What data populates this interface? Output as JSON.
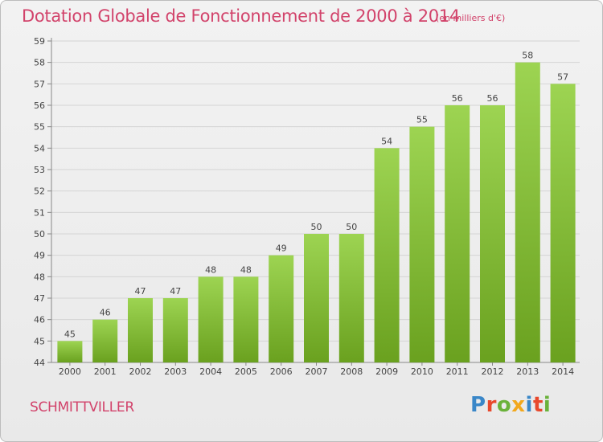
{
  "header": {
    "title": "Dotation Globale de Fonctionnement de 2000 à 2014",
    "unit": "(en milliers d'€)"
  },
  "footer": {
    "place": "SCHMITTVILLER",
    "brand": "Proxiti"
  },
  "colors": {
    "accent": "#d2436b",
    "bar_top": "#9dd452",
    "bar_bottom": "#6aa11f",
    "logo": [
      "#3a87c8",
      "#e8482c",
      "#6ab23a",
      "#f2a81d",
      "#3a87c8",
      "#e8482c",
      "#6ab23a"
    ]
  },
  "chart_data": {
    "type": "bar",
    "title": "Dotation Globale de Fonctionnement de 2000 à 2014",
    "subtitle": "(en milliers d'€)",
    "xlabel": "",
    "ylabel": "",
    "categories": [
      "2000",
      "2001",
      "2002",
      "2003",
      "2004",
      "2005",
      "2006",
      "2007",
      "2008",
      "2009",
      "2010",
      "2011",
      "2012",
      "2013",
      "2014"
    ],
    "values": [
      45,
      46,
      47,
      47,
      48,
      48,
      49,
      50,
      50,
      54,
      55,
      56,
      56,
      58,
      57
    ],
    "ylim": [
      44,
      59
    ],
    "yticks": [
      44,
      45,
      46,
      47,
      48,
      49,
      50,
      51,
      52,
      53,
      54,
      55,
      56,
      57,
      58,
      59
    ],
    "grid": true
  }
}
